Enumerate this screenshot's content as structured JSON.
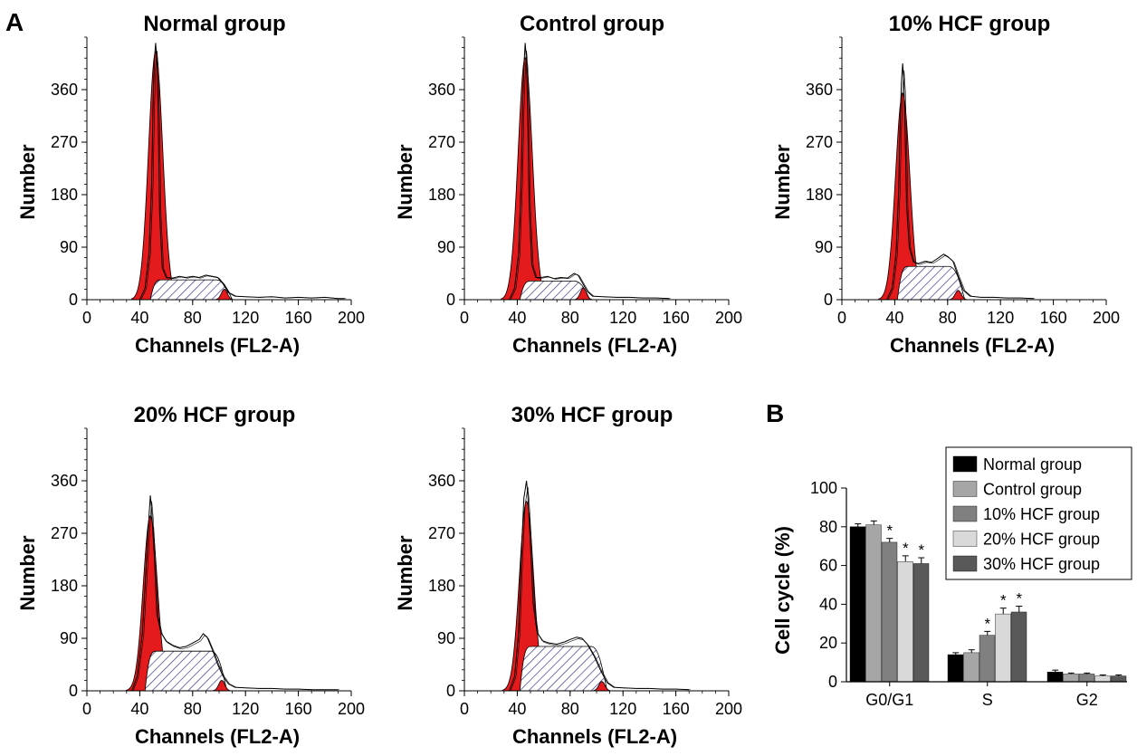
{
  "panel_labels": {
    "a": "A",
    "b": "B"
  },
  "colors": {
    "g1_fill": "#e41a1c",
    "hatch": "#3a3a8a",
    "line": "#000000"
  },
  "chart_data": [
    {
      "type": "area",
      "id": "normal",
      "title": "Normal group",
      "xlabel": "Channels (FL2-A)",
      "ylabel": "Number",
      "xlim": [
        0,
        200
      ],
      "ylim": [
        0,
        450
      ],
      "xticks": [
        "0",
        "40",
        "80",
        "120",
        "160",
        "200"
      ],
      "yticks": [
        "0",
        "90",
        "180",
        "270",
        "360"
      ],
      "g1_peak": {
        "x": 52,
        "height": 425
      },
      "g2_peak": {
        "x": 104,
        "height": 18
      },
      "s_phase": {
        "from": 48,
        "to": 110,
        "height": 34
      },
      "outline": [
        [
          40,
          0
        ],
        [
          44,
          20
        ],
        [
          47,
          80
        ],
        [
          49,
          200
        ],
        [
          50,
          330
        ],
        [
          51,
          410
        ],
        [
          52,
          440
        ],
        [
          53,
          410
        ],
        [
          54,
          300
        ],
        [
          55,
          150
        ],
        [
          57,
          55
        ],
        [
          60,
          38
        ],
        [
          65,
          37
        ],
        [
          70,
          40
        ],
        [
          75,
          38
        ],
        [
          80,
          40
        ],
        [
          85,
          38
        ],
        [
          90,
          42
        ],
        [
          95,
          40
        ],
        [
          99,
          38
        ],
        [
          103,
          27
        ],
        [
          107,
          12
        ],
        [
          112,
          6
        ],
        [
          120,
          5
        ],
        [
          130,
          4
        ],
        [
          140,
          5
        ],
        [
          150,
          3
        ],
        [
          160,
          4
        ],
        [
          170,
          3
        ],
        [
          180,
          4
        ],
        [
          190,
          2
        ],
        [
          195,
          2
        ]
      ]
    },
    {
      "type": "area",
      "id": "control",
      "title": "Control group",
      "xlabel": "Channels (FL2-A)",
      "ylabel": "Number",
      "xlim": [
        0,
        200
      ],
      "ylim": [
        0,
        450
      ],
      "xticks": [
        "0",
        "40",
        "80",
        "120",
        "160",
        "200"
      ],
      "yticks": [
        "0",
        "90",
        "180",
        "270",
        "360"
      ],
      "g1_peak": {
        "x": 46,
        "height": 415
      },
      "g2_peak": {
        "x": 90,
        "height": 20
      },
      "s_phase": {
        "from": 42,
        "to": 95,
        "height": 32
      },
      "outline": [
        [
          34,
          0
        ],
        [
          38,
          20
        ],
        [
          41,
          80
        ],
        [
          43,
          210
        ],
        [
          44,
          330
        ],
        [
          45,
          400
        ],
        [
          46,
          440
        ],
        [
          47,
          410
        ],
        [
          48,
          300
        ],
        [
          49,
          160
        ],
        [
          51,
          60
        ],
        [
          54,
          38
        ],
        [
          58,
          38
        ],
        [
          63,
          40
        ],
        [
          68,
          36
        ],
        [
          73,
          38
        ],
        [
          78,
          37
        ],
        [
          83,
          45
        ],
        [
          86,
          42
        ],
        [
          89,
          30
        ],
        [
          93,
          14
        ],
        [
          97,
          6
        ],
        [
          105,
          5
        ],
        [
          115,
          4
        ],
        [
          125,
          4
        ],
        [
          135,
          3
        ],
        [
          145,
          3
        ],
        [
          155,
          2
        ]
      ]
    },
    {
      "type": "area",
      "id": "hcf10",
      "title": "10% HCF group",
      "xlabel": "Channels (FL2-A)",
      "ylabel": "Number",
      "xlim": [
        0,
        200
      ],
      "ylim": [
        0,
        450
      ],
      "xticks": [
        "0",
        "40",
        "80",
        "120",
        "160",
        "200"
      ],
      "yticks": [
        "0",
        "90",
        "180",
        "270",
        "360"
      ],
      "g1_peak": {
        "x": 46,
        "height": 355
      },
      "g2_peak": {
        "x": 88,
        "height": 16
      },
      "s_phase": {
        "from": 42,
        "to": 93,
        "height": 57
      },
      "outline": [
        [
          34,
          0
        ],
        [
          38,
          20
        ],
        [
          41,
          80
        ],
        [
          43,
          190
        ],
        [
          44,
          300
        ],
        [
          45,
          370
        ],
        [
          46,
          405
        ],
        [
          47,
          370
        ],
        [
          48,
          270
        ],
        [
          49,
          160
        ],
        [
          51,
          90
        ],
        [
          54,
          65
        ],
        [
          58,
          62
        ],
        [
          63,
          66
        ],
        [
          68,
          64
        ],
        [
          72,
          70
        ],
        [
          77,
          78
        ],
        [
          80,
          74
        ],
        [
          84,
          66
        ],
        [
          88,
          40
        ],
        [
          92,
          16
        ],
        [
          97,
          6
        ],
        [
          105,
          4
        ],
        [
          115,
          4
        ],
        [
          125,
          3
        ],
        [
          135,
          3
        ],
        [
          145,
          2
        ]
      ]
    },
    {
      "type": "area",
      "id": "hcf20",
      "title": "20% HCF group",
      "xlabel": "Channels (FL2-A)",
      "ylabel": "Number",
      "xlim": [
        0,
        200
      ],
      "ylim": [
        0,
        450
      ],
      "xticks": [
        "0",
        "40",
        "80",
        "120",
        "160",
        "200"
      ],
      "yticks": [
        "0",
        "90",
        "180",
        "270",
        "360"
      ],
      "g1_peak": {
        "x": 48,
        "height": 300
      },
      "g2_peak": {
        "x": 102,
        "height": 18
      },
      "s_phase": {
        "from": 44,
        "to": 106,
        "height": 68
      },
      "outline": [
        [
          34,
          0
        ],
        [
          38,
          25
        ],
        [
          42,
          100
        ],
        [
          45,
          220
        ],
        [
          47,
          300
        ],
        [
          48,
          335
        ],
        [
          49,
          310
        ],
        [
          51,
          230
        ],
        [
          53,
          130
        ],
        [
          56,
          100
        ],
        [
          60,
          85
        ],
        [
          65,
          78
        ],
        [
          70,
          74
        ],
        [
          75,
          76
        ],
        [
          80,
          82
        ],
        [
          85,
          88
        ],
        [
          88,
          98
        ],
        [
          91,
          92
        ],
        [
          95,
          70
        ],
        [
          99,
          45
        ],
        [
          103,
          25
        ],
        [
          107,
          12
        ],
        [
          112,
          6
        ],
        [
          120,
          5
        ],
        [
          130,
          4
        ],
        [
          140,
          4
        ],
        [
          150,
          3
        ],
        [
          160,
          3
        ],
        [
          170,
          2
        ],
        [
          180,
          2
        ],
        [
          190,
          2
        ]
      ]
    },
    {
      "type": "area",
      "id": "hcf30",
      "title": "30% HCF group",
      "xlabel": "Channels (FL2-A)",
      "ylabel": "Number",
      "xlim": [
        0,
        200
      ],
      "ylim": [
        0,
        450
      ],
      "xticks": [
        "0",
        "40",
        "80",
        "120",
        "160",
        "200"
      ],
      "yticks": [
        "0",
        "90",
        "180",
        "270",
        "360"
      ],
      "g1_peak": {
        "x": 47,
        "height": 325
      },
      "g2_peak": {
        "x": 104,
        "height": 16
      },
      "s_phase": {
        "from": 42,
        "to": 108,
        "height": 76
      },
      "outline": [
        [
          34,
          0
        ],
        [
          38,
          25
        ],
        [
          41,
          100
        ],
        [
          43,
          230
        ],
        [
          45,
          330
        ],
        [
          47,
          360
        ],
        [
          48,
          335
        ],
        [
          50,
          250
        ],
        [
          52,
          150
        ],
        [
          55,
          100
        ],
        [
          59,
          86
        ],
        [
          64,
          82
        ],
        [
          70,
          80
        ],
        [
          76,
          84
        ],
        [
          80,
          88
        ],
        [
          85,
          92
        ],
        [
          89,
          90
        ],
        [
          93,
          80
        ],
        [
          98,
          60
        ],
        [
          103,
          35
        ],
        [
          108,
          14
        ],
        [
          113,
          6
        ],
        [
          120,
          5
        ],
        [
          130,
          4
        ],
        [
          140,
          4
        ],
        [
          150,
          3
        ],
        [
          160,
          3
        ],
        [
          170,
          2
        ]
      ]
    },
    {
      "type": "bar",
      "id": "cellcycle",
      "title": "",
      "xlabel": "",
      "ylabel": "Cell cycle (%)",
      "ylim": [
        0,
        100
      ],
      "yticks": [
        "0",
        "20",
        "40",
        "60",
        "80",
        "100"
      ],
      "categories": [
        "G0/G1",
        "S",
        "G2"
      ],
      "series": [
        {
          "name": "Normal group",
          "color": "#000000",
          "values": [
            80,
            14,
            5
          ],
          "errors": [
            1.5,
            1,
            1
          ],
          "sig": [
            false,
            false,
            false
          ]
        },
        {
          "name": "Control group",
          "color": "#a6a6a6",
          "values": [
            81,
            15,
            4
          ],
          "errors": [
            2,
            1.5,
            0.5
          ],
          "sig": [
            false,
            false,
            false
          ]
        },
        {
          "name": "10% HCF group",
          "color": "#808080",
          "values": [
            72,
            24,
            4
          ],
          "errors": [
            2,
            2,
            0.5
          ],
          "sig": [
            true,
            true,
            false
          ]
        },
        {
          "name": "20% HCF group",
          "color": "#d9d9d9",
          "values": [
            62,
            35,
            3
          ],
          "errors": [
            3,
            3,
            0.5
          ],
          "sig": [
            true,
            true,
            false
          ]
        },
        {
          "name": "30% HCF group",
          "color": "#595959",
          "values": [
            61,
            36,
            3
          ],
          "errors": [
            3,
            3,
            0.5
          ],
          "sig": [
            true,
            true,
            false
          ]
        }
      ],
      "sig_marker": "*",
      "legend_position": "top-right"
    }
  ]
}
